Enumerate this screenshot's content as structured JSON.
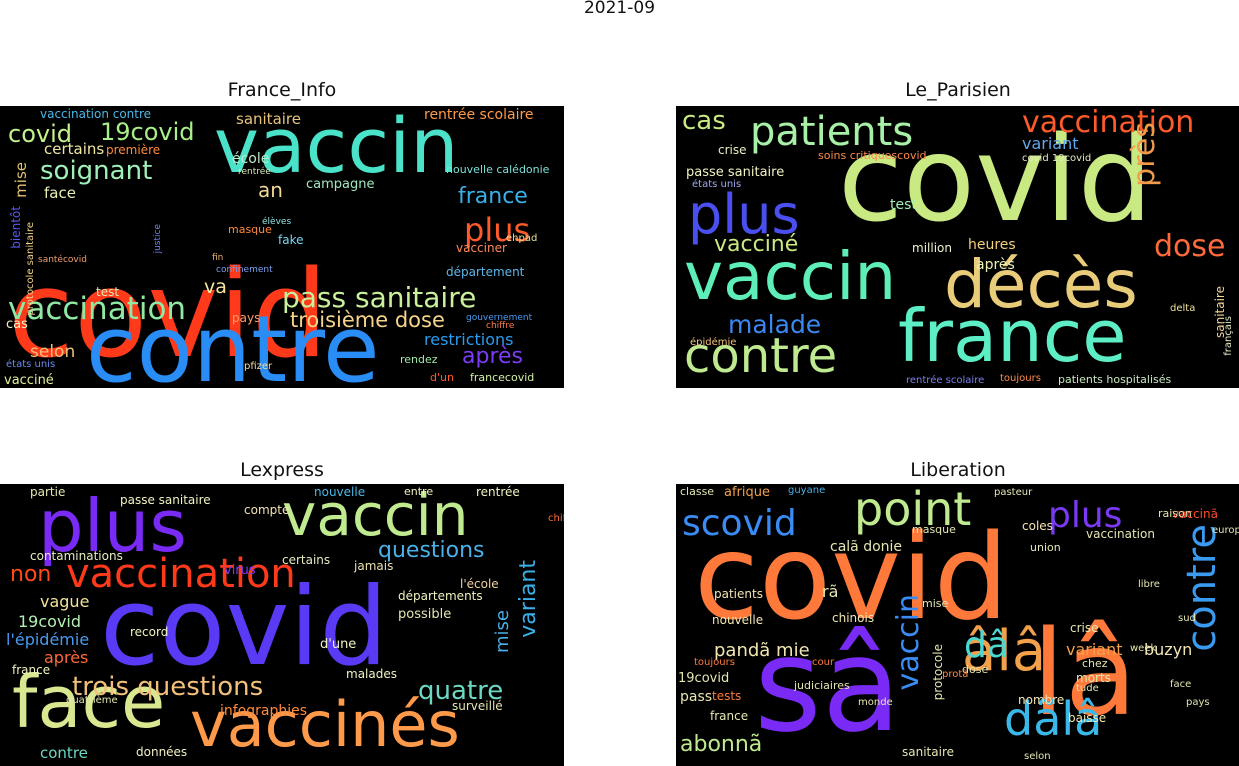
{
  "figure": {
    "suptitle": "2021-09"
  },
  "panels": [
    {
      "title": "France_Info",
      "words": [
        "covid",
        "contre",
        "vaccin",
        "vaccination",
        "pass sanitaire",
        "plus",
        "soignant",
        "19covid",
        "covid",
        "france",
        "troisième dose",
        "après",
        "restrictions",
        "selon",
        "an",
        "sanitaire",
        "rentrée scolaire",
        "certains",
        "mise",
        "face",
        "école",
        "campagne",
        "département",
        "vacciner",
        "va",
        "fake",
        "test",
        "cas",
        "pays",
        "vaccination contre",
        "première",
        "bientôt",
        "vacciné",
        "états unis",
        "rendez",
        "d'un",
        "francecovid",
        "protocole sanitaire",
        "nouvelle calédonie",
        "ehpad",
        "gouvernement",
        "chiffre",
        "pfizer",
        "masque",
        "élèves",
        "fin",
        "confinement",
        "rentrée",
        "justice",
        "santécovid"
      ]
    },
    {
      "title": "Le_Parisien",
      "words": [
        "covid",
        "vaccin",
        "décès",
        "france",
        "contre",
        "patients",
        "plus",
        "vaccination",
        "dose",
        "malade",
        "vacciné",
        "cas",
        "près",
        "variant",
        "heures",
        "test",
        "passe sanitaire",
        "crise",
        "sanitaire",
        "après",
        "million",
        "delta",
        "soins critiquescovid",
        "épidémie",
        "états unis",
        "patients hospitalisés",
        "rentrée scolaire",
        "covid 19covid",
        "toujours",
        "français"
      ]
    },
    {
      "title": "Lexpress",
      "words": [
        "covid",
        "vaccinés",
        "face",
        "plus",
        "vaccin",
        "vaccination",
        "trois questions",
        "questions",
        "quatre",
        "variant",
        "non",
        "vague",
        "19covid",
        "après",
        "l'épidémie",
        "infographies",
        "mise",
        "contre",
        "passe sanitaire",
        "nouvelle",
        "rentrée",
        "partie",
        "contaminations",
        "certains",
        "virus",
        "jamais",
        "compte",
        "départements",
        "l'école",
        "possible",
        "record",
        "d'une",
        "malades",
        "surveillé",
        "données",
        "france",
        "entre",
        "chiffre",
        "quatrième"
      ]
    },
    {
      "title": "Liberation",
      "words": [
        "covid",
        "sâ",
        "lâ",
        "âlâ",
        "point",
        "contre",
        "scovid",
        "plus",
        "dâ",
        "dãlâ",
        "vaccin",
        "abonnã",
        "pandã mie",
        "variant",
        "buzyn",
        "calã donie",
        "pass",
        "france",
        "tests",
        "vaccinã",
        "afrique",
        "classe",
        "guyane",
        "nouvelle",
        "patients",
        "chinois",
        "morts",
        "crise",
        "baisse",
        "vaccination",
        "sanitaire",
        "19covid",
        "mise",
        "protocole",
        "rã",
        "coles",
        "union",
        "masque",
        "sud",
        "week",
        "face",
        "pays",
        "nombre",
        "toujours",
        "selon",
        "dose",
        "judiciaires",
        "chez",
        "raison",
        "libre",
        "pasteur",
        "protã",
        "cour",
        "monde",
        "tude",
        "europã"
      ]
    }
  ]
}
